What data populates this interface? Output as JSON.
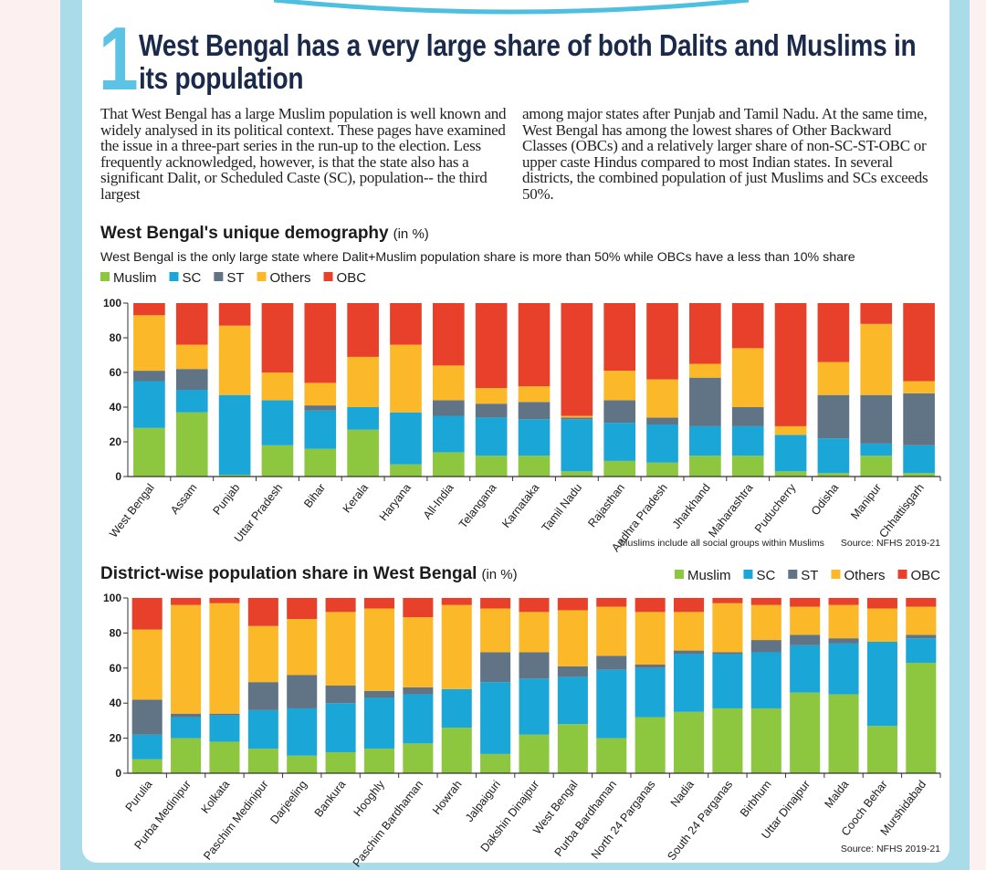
{
  "header": {
    "number": "1",
    "title": "West Bengal has a very large share of both Dalits and Muslims in its population"
  },
  "body": [
    "That West Bengal has a large Muslim population is well known and widely analysed in its political context. These pages have examined the issue in a three-part series in the run-up to the election. Less frequently acknowledged, however, is that the state also has a significant Dalit, or Scheduled Caste (SC), population-- the third largest",
    "among major states after Punjab and Tamil Nadu. At the same time, West Bengal has among the lowest shares of Other Backward Classes (OBCs) and a relatively larger share of non-SC-ST-OBC or upper caste Hindus compared to most Indian states. In several districts, the combined population of just Muslims and SCs exceeds 50%."
  ],
  "chart_data": [
    {
      "type": "stacked_bar",
      "title": "West Bengal's unique demography",
      "unit": "(in %)",
      "subtitle": "West Bengal is the only large state where Dalit+Muslim population share is more than 50% while OBCs have a less than 10% share",
      "note": "Muslims include all social groups within Muslims",
      "source": "Source: NFHS 2019-21",
      "legend": "top-left",
      "categories": [
        "West Bengal",
        "Assam",
        "Punjab",
        "Uttar Pradesh",
        "Bihar",
        "Kerala",
        "Haryana",
        "All-India",
        "Telangana",
        "Karnataka",
        "Tamil Nadu",
        "Rajasthan",
        "Andhra Pradesh",
        "Jharkhand",
        "Maharashtra",
        "Puducherry",
        "Odisha",
        "Manipur",
        "Chhattisgarh"
      ],
      "series": [
        {
          "name": "Muslim",
          "color": "#8dc63f",
          "values": [
            28,
            37,
            1,
            18,
            16,
            27,
            7,
            14,
            12,
            12,
            3,
            9,
            8,
            12,
            12,
            3,
            2,
            12,
            2
          ]
        },
        {
          "name": "SC",
          "color": "#1ba6d8",
          "values": [
            27,
            13,
            46,
            26,
            22,
            13,
            30,
            21,
            22,
            21,
            30,
            22,
            22,
            17,
            17,
            21,
            20,
            7,
            16
          ]
        },
        {
          "name": "ST",
          "color": "#617486",
          "values": [
            6,
            12,
            0,
            0,
            3,
            0,
            0,
            9,
            8,
            10,
            1,
            13,
            4,
            28,
            11,
            0,
            25,
            28,
            30
          ]
        },
        {
          "name": "Others",
          "color": "#fbb829",
          "values": [
            32,
            14,
            40,
            16,
            13,
            29,
            39,
            20,
            9,
            9,
            1,
            17,
            22,
            8,
            34,
            5,
            19,
            41,
            7
          ]
        },
        {
          "name": "OBC",
          "color": "#e8412b",
          "values": [
            7,
            24,
            13,
            40,
            46,
            31,
            24,
            36,
            49,
            48,
            65,
            39,
            44,
            35,
            26,
            71,
            34,
            12,
            45
          ]
        }
      ],
      "ylim": [
        0,
        100
      ],
      "yticks": [
        0,
        20,
        40,
        60,
        80,
        100
      ]
    },
    {
      "type": "stacked_bar",
      "title": "District-wise population share in West Bengal",
      "unit": "(in %)",
      "source": "Source: NFHS 2019-21",
      "legend": "top-right",
      "categories": [
        "Purulia",
        "Purba Medinipur",
        "Kolkata",
        "Paschim Medinipur",
        "Darjeeling",
        "Bankura",
        "Hooghly",
        "Paschim Bardhaman",
        "Howrah",
        "Jalpaiguri",
        "Dakshin Dinajpur",
        "West Bengal",
        "Purba Bardhaman",
        "North 24 Parganas",
        "Nadia",
        "South 24 Parganas",
        "Birbhum",
        "Uttar Dinajpur",
        "Malda",
        "Cooch Behar",
        "Murshidabad"
      ],
      "series": [
        {
          "name": "Muslim",
          "color": "#8dc63f",
          "values": [
            8,
            20,
            18,
            14,
            10,
            12,
            14,
            17,
            26,
            11,
            22,
            28,
            20,
            32,
            35,
            37,
            37,
            46,
            45,
            27,
            63
          ]
        },
        {
          "name": "SC",
          "color": "#1ba6d8",
          "values": [
            14,
            12,
            15,
            22,
            27,
            28,
            29,
            28,
            22,
            41,
            32,
            27,
            39,
            28,
            33,
            31,
            32,
            27,
            29,
            48,
            14
          ]
        },
        {
          "name": "ST",
          "color": "#617486",
          "values": [
            20,
            2,
            1,
            16,
            19,
            10,
            4,
            4,
            0,
            17,
            15,
            6,
            8,
            2,
            2,
            1,
            7,
            6,
            3,
            0,
            2
          ]
        },
        {
          "name": "Others",
          "color": "#fbb829",
          "values": [
            40,
            62,
            63,
            32,
            32,
            42,
            47,
            40,
            48,
            25,
            23,
            32,
            28,
            30,
            22,
            28,
            20,
            16,
            19,
            19,
            16
          ]
        },
        {
          "name": "OBC",
          "color": "#e8412b",
          "values": [
            18,
            4,
            3,
            16,
            12,
            8,
            6,
            11,
            4,
            6,
            8,
            7,
            5,
            8,
            8,
            3,
            4,
            5,
            4,
            6,
            5
          ]
        }
      ],
      "ylim": [
        0,
        100
      ],
      "yticks": [
        0,
        20,
        40,
        60,
        80,
        100
      ]
    }
  ]
}
